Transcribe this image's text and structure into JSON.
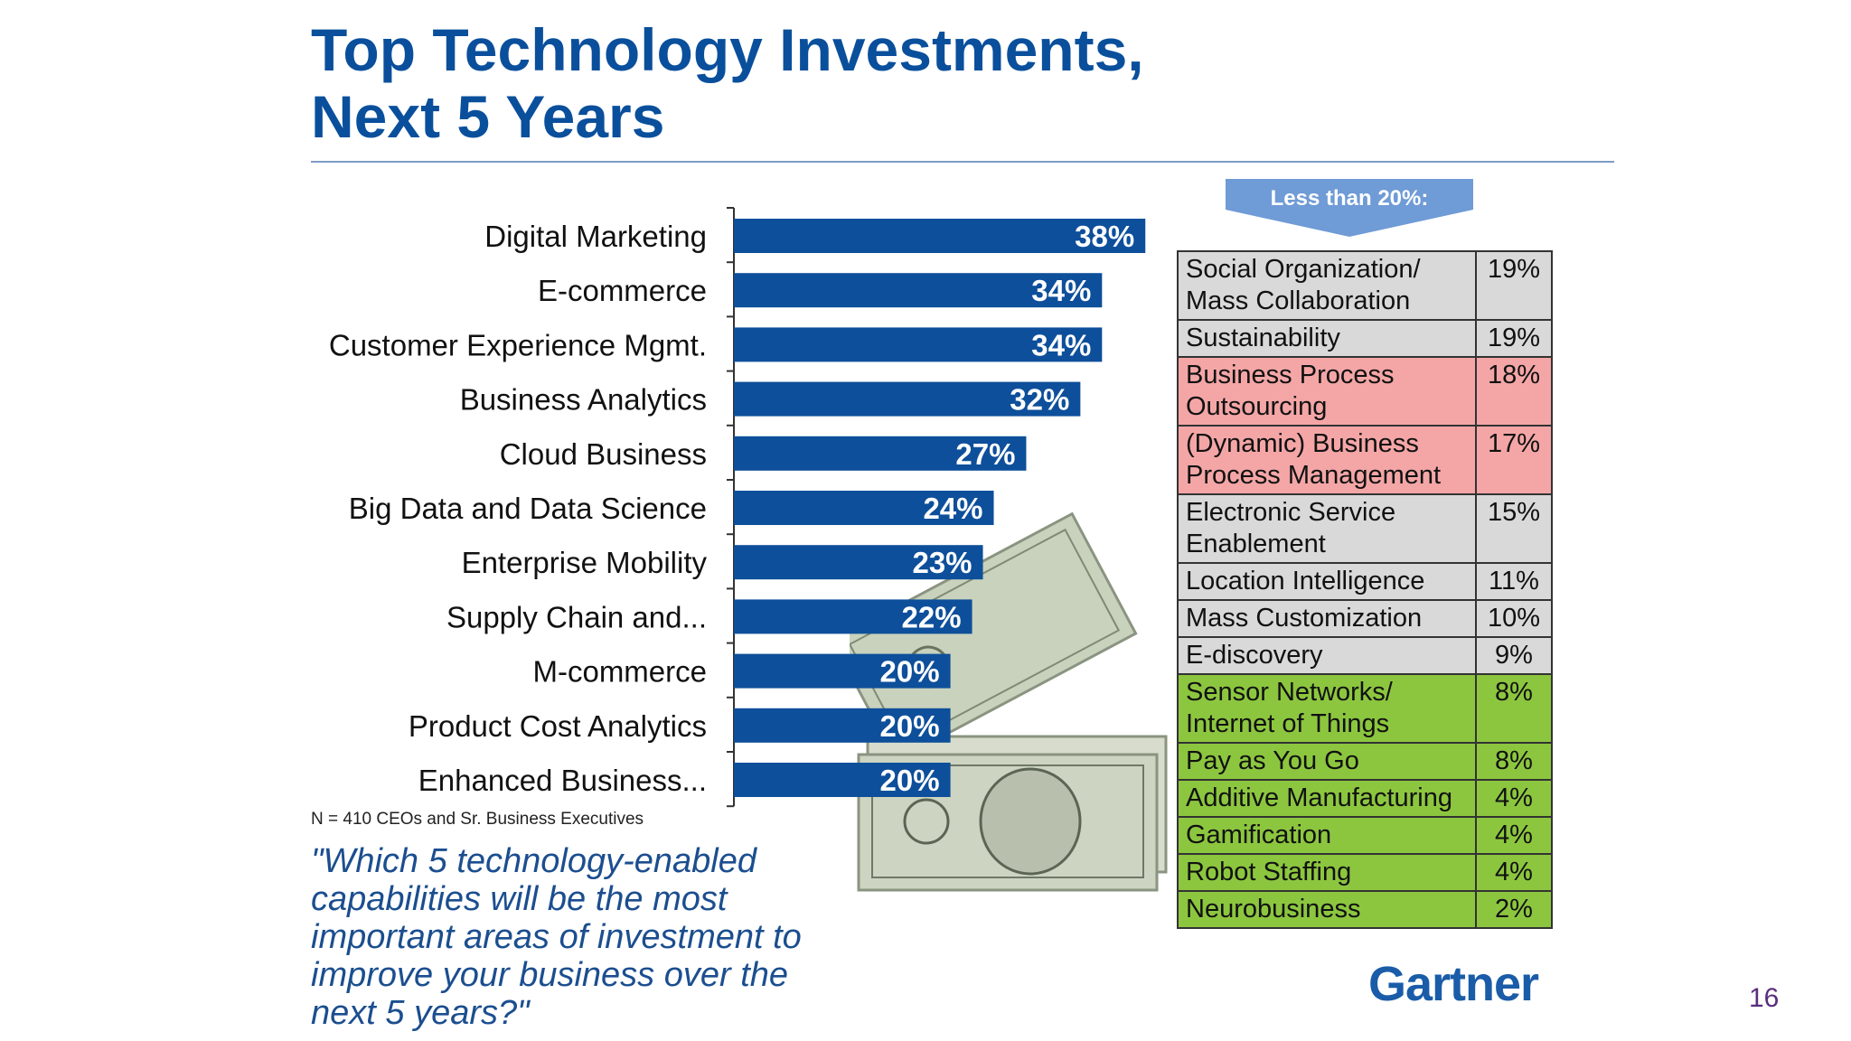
{
  "title": {
    "line1": "Top Technology Investments,",
    "line2": "Next 5 Years"
  },
  "chart_data": {
    "type": "bar",
    "orientation": "horizontal",
    "categories": [
      "Digital Marketing",
      "E-commerce",
      "Customer Experience Mgmt.",
      "Business Analytics",
      "Cloud Business",
      "Big Data and Data Science",
      "Enterprise Mobility",
      "Supply Chain and...",
      "M-commerce",
      "Product Cost Analytics",
      "Enhanced Business..."
    ],
    "values": [
      38,
      34,
      34,
      32,
      27,
      24,
      23,
      22,
      20,
      20,
      20
    ],
    "value_labels": [
      "38%",
      "34%",
      "34%",
      "32%",
      "27%",
      "24%",
      "23%",
      "22%",
      "20%",
      "20%",
      "20%"
    ],
    "unit": "%",
    "xlim": [
      0,
      40
    ],
    "bar_color": "#0d4f9a"
  },
  "note": "N = 410 CEOs and Sr. Business Executives",
  "question": "\"Which 5 technology-enabled capabilities will be the most important areas of investment to improve your business over the next 5 years?\"",
  "less_than": {
    "label": "Less than 20%:",
    "items": [
      {
        "name": "Social Organization/ Mass Collaboration",
        "pct": "19%",
        "color": "#d9d9d9"
      },
      {
        "name": "Sustainability",
        "pct": "19%",
        "color": "#d9d9d9"
      },
      {
        "name": "Business Process Outsourcing",
        "pct": "18%",
        "color": "#f4a6a6"
      },
      {
        "name": "(Dynamic) Business Process Management",
        "pct": "17%",
        "color": "#f4a6a6"
      },
      {
        "name": "Electronic Service Enablement",
        "pct": "15%",
        "color": "#d9d9d9"
      },
      {
        "name": "Location Intelligence",
        "pct": "11%",
        "color": "#d9d9d9"
      },
      {
        "name": "Mass Customization",
        "pct": "10%",
        "color": "#d9d9d9"
      },
      {
        "name": "E-discovery",
        "pct": "9%",
        "color": "#d9d9d9"
      },
      {
        "name": "Sensor Networks/ Internet of Things",
        "pct": "8%",
        "color": "#8cc63f"
      },
      {
        "name": "Pay as You Go",
        "pct": "8%",
        "color": "#8cc63f"
      },
      {
        "name": "Additive Manufacturing",
        "pct": "4%",
        "color": "#8cc63f"
      },
      {
        "name": "Gamification",
        "pct": "4%",
        "color": "#8cc63f"
      },
      {
        "name": "Robot Staffing",
        "pct": "4%",
        "color": "#8cc63f"
      },
      {
        "name": "Neurobusiness",
        "pct": "2%",
        "color": "#8cc63f"
      }
    ]
  },
  "logo": "Gartner",
  "page_number": "16",
  "colors": {
    "title": "#0a4f9c",
    "bar": "#0d4f9a",
    "banner": "#6f9bd6",
    "question": "#1b4e8f",
    "gray_cell": "#d9d9d9",
    "red_cell": "#f4a6a6",
    "green_cell": "#8cc63f"
  }
}
